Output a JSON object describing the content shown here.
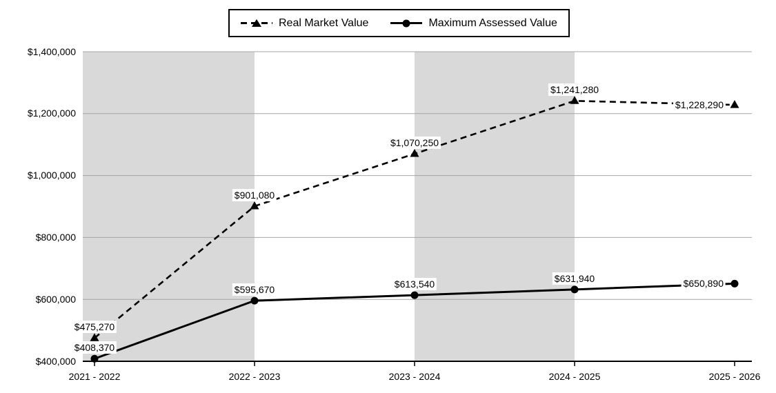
{
  "chart_data": {
    "type": "line",
    "title": "",
    "categories": [
      "2021 - 2022",
      "2022 - 2023",
      "2023 - 2024",
      "2024 - 2025",
      "2025 - 2026"
    ],
    "series": [
      {
        "name": "Real Market Value",
        "line_style": "dashed",
        "marker": "triangle",
        "values": [
          475270,
          901080,
          1070250,
          1241280,
          1228290
        ],
        "labels": [
          "$475,270",
          "$901,080",
          "$1,070,250",
          "$1,241,280",
          "$1,228,290"
        ],
        "label_positions": [
          "above",
          "above",
          "above",
          "above",
          "left"
        ]
      },
      {
        "name": "Maximum Assessed Value",
        "line_style": "solid",
        "marker": "circle",
        "values": [
          408370,
          595670,
          613540,
          631940,
          650890
        ],
        "labels": [
          "$408,370",
          "$595,670",
          "$613,540",
          "$631,940",
          "$650,890"
        ],
        "label_positions": [
          "above",
          "above",
          "above",
          "above",
          "left"
        ]
      }
    ],
    "y_axis": {
      "min": 400000,
      "max": 1400000,
      "step": 200000,
      "tick_labels": [
        "$400,000",
        "$600,000",
        "$800,000",
        "$1,000,000",
        "$1,200,000",
        "$1,400,000"
      ]
    },
    "x_axis": {
      "label": ""
    },
    "legend_position": "top",
    "grid": true,
    "plot_bands": {
      "between_points": [
        [
          0,
          1
        ],
        [
          2,
          3
        ]
      ]
    },
    "colors": {
      "line": "#000000",
      "gridline": "#a6a6a6",
      "band": "#d9d9d9",
      "background": "#ffffff",
      "label_bg": "#ffffff"
    }
  },
  "legend": {
    "items": [
      {
        "label": "Real Market Value"
      },
      {
        "label": "Maximum Assessed Value"
      }
    ]
  }
}
